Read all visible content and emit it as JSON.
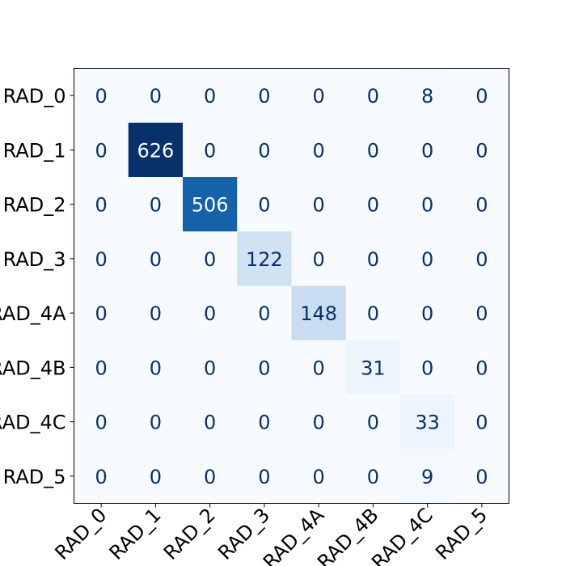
{
  "chart_data": {
    "type": "heatmap",
    "title": "",
    "xlabel": "",
    "ylabel": "",
    "labels": [
      "RAD_0",
      "RAD_1",
      "RAD_2",
      "RAD_3",
      "RAD_4A",
      "RAD_4B",
      "RAD_4C",
      "RAD_5"
    ],
    "matrix": [
      [
        0,
        0,
        0,
        0,
        0,
        0,
        8,
        0
      ],
      [
        0,
        626,
        0,
        0,
        0,
        0,
        0,
        0
      ],
      [
        0,
        0,
        506,
        0,
        0,
        0,
        0,
        0
      ],
      [
        0,
        0,
        0,
        122,
        0,
        0,
        0,
        0
      ],
      [
        0,
        0,
        0,
        0,
        148,
        0,
        0,
        0
      ],
      [
        0,
        0,
        0,
        0,
        0,
        31,
        0,
        0
      ],
      [
        0,
        0,
        0,
        0,
        0,
        0,
        33,
        0
      ],
      [
        0,
        0,
        0,
        0,
        0,
        0,
        9,
        0
      ]
    ],
    "colormap": "Blues",
    "value_range": [
      0,
      626
    ],
    "grid": false,
    "colors": {
      "low": "#f7fbff",
      "high": "#08306b",
      "text_dark": "#08306b",
      "text_light": "#f7fbff"
    }
  }
}
